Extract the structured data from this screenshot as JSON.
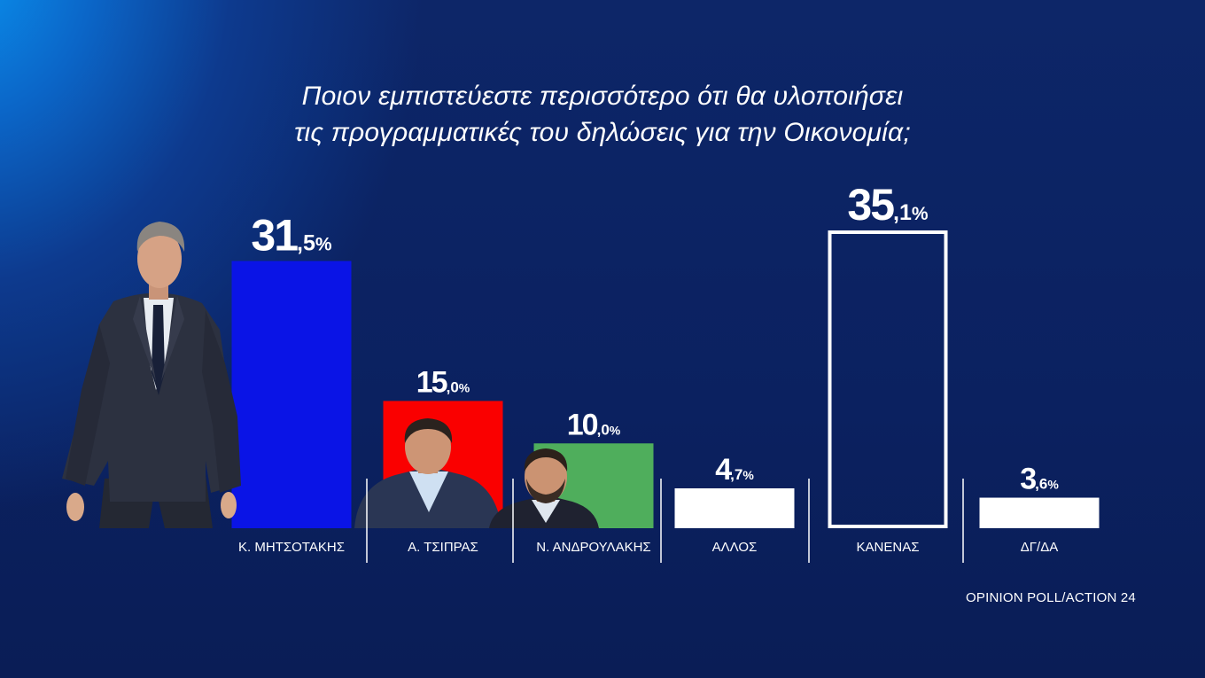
{
  "chart_data": {
    "type": "bar",
    "title_lines": [
      "Ποιον εμπιστεύεστε περισσότερο ότι θα υλοποιήσει",
      "τις προγραμματικές του δηλώσεις για την Οικονομία;"
    ],
    "categories": [
      "Κ. ΜΗΤΣΟΤΑΚΗΣ",
      "Α. ΤΣΙΠΡΑΣ",
      "Ν. ΑΝΔΡΟΥΛΑΚΗΣ",
      "ΑΛΛΟΣ",
      "ΚΑΝΕΝΑΣ",
      "ΔΓ/ΔΑ"
    ],
    "values": [
      31.5,
      15.0,
      10.0,
      4.7,
      35.1,
      3.6
    ],
    "value_labels": [
      {
        "int": "31",
        "dec": ",5",
        "unit": "%"
      },
      {
        "int": "15",
        "dec": ",0",
        "unit": "%"
      },
      {
        "int": "10",
        "dec": ",0",
        "unit": "%"
      },
      {
        "int": "4",
        "dec": ",7",
        "unit": "%"
      },
      {
        "int": "35",
        "dec": ",1",
        "unit": "%"
      },
      {
        "int": "3",
        "dec": ",6",
        "unit": "%"
      }
    ],
    "bar_colors": [
      "#0a14e6",
      "#fa0000",
      "#4fae5c",
      "#ffffff",
      "outline-white",
      "#ffffff"
    ],
    "ylim": [
      0,
      35.1
    ],
    "grid": false,
    "legend": "none"
  },
  "source": "OPINION POLL/ACTION 24",
  "photos": [
    {
      "name": "Κ. ΜΗΤΣΟΤΑΚΗΣ",
      "kind": "portrait-full"
    },
    {
      "name": "Α. ΤΣΙΠΡΑΣ",
      "kind": "portrait-bust"
    },
    {
      "name": "Ν. ΑΝΔΡΟΥΛΑΚΗΣ",
      "kind": "portrait-bust"
    }
  ]
}
